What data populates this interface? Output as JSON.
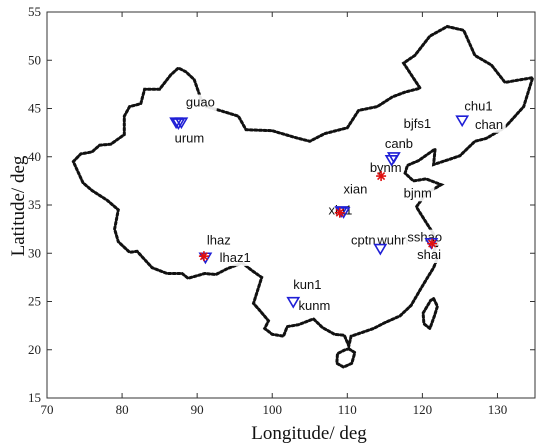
{
  "chart_data": {
    "type": "scatter",
    "title": "",
    "xlabel": "Longitude/ deg",
    "ylabel": "Latitude/ deg",
    "xlim": [
      70,
      135
    ],
    "ylim": [
      15,
      55
    ],
    "xticks": [
      70,
      80,
      90,
      100,
      110,
      120,
      130
    ],
    "yticks": [
      15,
      20,
      25,
      30,
      35,
      40,
      45,
      50,
      55
    ],
    "grid": false,
    "legend": "none",
    "colors": {
      "triangle": "#1f1fd6",
      "star": "#e01010",
      "boundary": "#111111"
    },
    "boundary_points": [
      [
        73.5,
        39.5
      ],
      [
        74.5,
        40.3
      ],
      [
        76,
        40.5
      ],
      [
        77,
        41.2
      ],
      [
        78.5,
        41.3
      ],
      [
        80.3,
        42.3
      ],
      [
        80.3,
        44.2
      ],
      [
        81,
        45.2
      ],
      [
        82.5,
        45.5
      ],
      [
        83,
        47
      ],
      [
        85,
        47
      ],
      [
        86.5,
        48.5
      ],
      [
        87.5,
        49.2
      ],
      [
        88.5,
        48.8
      ],
      [
        89.6,
        48
      ],
      [
        90.5,
        46
      ],
      [
        91.2,
        45.2
      ],
      [
        93,
        44.8
      ],
      [
        95.5,
        44.2
      ],
      [
        96.5,
        42.8
      ],
      [
        100,
        42.7
      ],
      [
        103,
        42
      ],
      [
        105,
        41.6
      ],
      [
        107,
        42.4
      ],
      [
        110,
        43
      ],
      [
        111.5,
        44.8
      ],
      [
        114,
        45.2
      ],
      [
        116,
        46.2
      ],
      [
        117.7,
        46.7
      ],
      [
        119.7,
        47.1
      ],
      [
        117.5,
        49.7
      ],
      [
        119,
        50.5
      ],
      [
        121,
        52.5
      ],
      [
        123.3,
        53.5
      ],
      [
        125.5,
        53.1
      ],
      [
        127,
        50.5
      ],
      [
        129.2,
        49.5
      ],
      [
        131,
        47.7
      ],
      [
        134.7,
        48.2
      ],
      [
        133.5,
        45.2
      ],
      [
        131.3,
        43.3
      ],
      [
        130.5,
        42.8
      ],
      [
        128.5,
        41.9
      ],
      [
        127,
        41.6
      ],
      [
        125,
        40.1
      ],
      [
        123.5,
        39.7
      ],
      [
        121.5,
        39.2
      ],
      [
        121.7,
        40.8
      ],
      [
        119.5,
        39.6
      ],
      [
        118,
        39.1
      ],
      [
        117.7,
        38.3
      ],
      [
        118.8,
        37.5
      ],
      [
        120.5,
        37.7
      ],
      [
        122.5,
        37.1
      ],
      [
        120.5,
        36.2
      ],
      [
        119.2,
        34.8
      ],
      [
        120.5,
        33.2
      ],
      [
        121.5,
        32
      ],
      [
        122,
        30.9
      ],
      [
        121.5,
        30.2
      ],
      [
        122,
        29.5
      ],
      [
        121.5,
        28.5
      ],
      [
        120.7,
        27.5
      ],
      [
        119.7,
        26.2
      ],
      [
        118.5,
        24.6
      ],
      [
        117,
        23.5
      ],
      [
        115,
        22.8
      ],
      [
        113.5,
        22.2
      ],
      [
        112,
        21.8
      ],
      [
        110.5,
        21.4
      ],
      [
        110.2,
        20.4
      ],
      [
        109.6,
        21.5
      ],
      [
        108.3,
        21.6
      ],
      [
        106.7,
        22.3
      ],
      [
        105.5,
        23.2
      ],
      [
        103.5,
        22.6
      ],
      [
        102,
        22.4
      ],
      [
        101.5,
        21.4
      ],
      [
        100,
        21.6
      ],
      [
        99,
        22.2
      ],
      [
        99.5,
        23
      ],
      [
        98.2,
        24.2
      ],
      [
        97.5,
        24.8
      ],
      [
        98.6,
        27.5
      ],
      [
        97.3,
        28.2
      ],
      [
        96,
        29
      ],
      [
        94,
        28.4
      ],
      [
        92.5,
        27.8
      ],
      [
        91,
        27.9
      ],
      [
        88.8,
        27.4
      ],
      [
        88,
        27.9
      ],
      [
        86,
        27.9
      ],
      [
        84,
        28.5
      ],
      [
        82,
        30.2
      ],
      [
        81,
        30.1
      ],
      [
        79.5,
        31.2
      ],
      [
        79,
        32.5
      ],
      [
        79.5,
        34.5
      ],
      [
        78,
        35.5
      ],
      [
        76,
        36.5
      ],
      [
        74.8,
        37.3
      ],
      [
        73.5,
        39.5
      ]
    ],
    "islands": [
      {
        "name": "taiwan",
        "points": [
          [
            121.5,
            25.3
          ],
          [
            122,
            24.5
          ],
          [
            121.6,
            23.5
          ],
          [
            121,
            22.2
          ],
          [
            120.2,
            22.7
          ],
          [
            120.1,
            23.8
          ],
          [
            121.1,
            25.1
          ],
          [
            121.5,
            25.3
          ]
        ]
      },
      {
        "name": "hainan",
        "points": [
          [
            110.2,
            20.1
          ],
          [
            111,
            19.7
          ],
          [
            110.6,
            18.6
          ],
          [
            109.5,
            18.2
          ],
          [
            108.6,
            18.6
          ],
          [
            108.7,
            19.6
          ],
          [
            109.7,
            20.0
          ],
          [
            110.2,
            20.1
          ]
        ]
      }
    ],
    "series": [
      {
        "marker": "triangle",
        "points": [
          {
            "x": 87.5,
            "y": 43.5
          },
          {
            "x": 87.2,
            "y": 43.6
          },
          {
            "x": 87.9,
            "y": 43.6
          },
          {
            "x": 116.2,
            "y": 40.0
          },
          {
            "x": 115.9,
            "y": 39.7
          },
          {
            "x": 125.3,
            "y": 43.8
          },
          {
            "x": 109.2,
            "y": 34.4
          },
          {
            "x": 109.5,
            "y": 34.3
          },
          {
            "x": 114.4,
            "y": 30.5
          },
          {
            "x": 121.2,
            "y": 31.1
          },
          {
            "x": 91.1,
            "y": 29.6
          },
          {
            "x": 102.8,
            "y": 25.0
          }
        ]
      },
      {
        "marker": "star",
        "points": [
          {
            "x": 114.5,
            "y": 38.0
          },
          {
            "x": 109.0,
            "y": 34.2
          },
          {
            "x": 90.9,
            "y": 29.7
          },
          {
            "x": 121.3,
            "y": 31.0
          }
        ]
      }
    ],
    "annotations": [
      {
        "text": "guao",
        "x": 88.5,
        "y": 45.2
      },
      {
        "text": "urum",
        "x": 87.0,
        "y": 41.5
      },
      {
        "text": "chu1",
        "x": 125.6,
        "y": 44.8
      },
      {
        "text": "chan",
        "x": 127.0,
        "y": 42.9
      },
      {
        "text": "bjfs1",
        "x": 117.5,
        "y": 43.0
      },
      {
        "text": "canb",
        "x": 115.0,
        "y": 40.9
      },
      {
        "text": "bynm",
        "x": 113.0,
        "y": 38.4
      },
      {
        "text": "xian",
        "x": 109.5,
        "y": 36.2
      },
      {
        "text": "bjnm",
        "x": 117.5,
        "y": 35.8
      },
      {
        "text": "xia1",
        "x": 107.5,
        "y": 34.0
      },
      {
        "text": "cptn",
        "x": 110.5,
        "y": 30.9
      },
      {
        "text": "wuhn",
        "x": 114.0,
        "y": 30.9
      },
      {
        "text": "sshao",
        "x": 118.0,
        "y": 31.2
      },
      {
        "text": "shai",
        "x": 119.3,
        "y": 29.4
      },
      {
        "text": "lhaz",
        "x": 91.3,
        "y": 30.9
      },
      {
        "text": "lhaz1",
        "x": 93.0,
        "y": 29.1
      },
      {
        "text": "kun1",
        "x": 102.8,
        "y": 26.3
      },
      {
        "text": "kunm",
        "x": 103.5,
        "y": 24.1
      }
    ]
  }
}
